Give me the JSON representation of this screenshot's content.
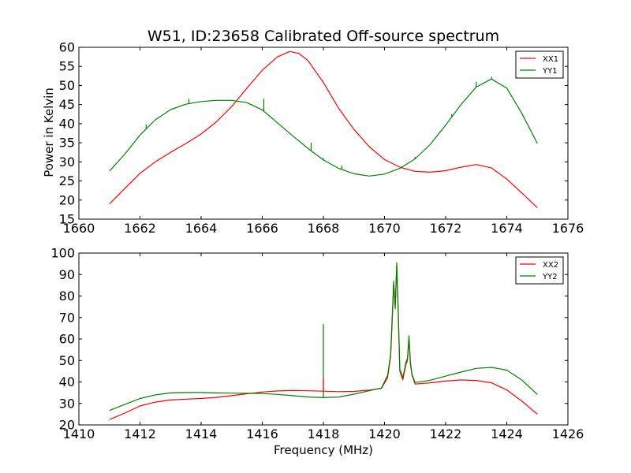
{
  "chart_data": [
    {
      "type": "line",
      "title": "W51, ID:23658 Calibrated Off-source spectrum",
      "xlabel": "",
      "ylabel": "Power in Kelvin",
      "xlim": [
        1660,
        1676
      ],
      "ylim": [
        15,
        60
      ],
      "xticks": [
        1660,
        1662,
        1664,
        1666,
        1668,
        1670,
        1672,
        1674,
        1676
      ],
      "yticks": [
        15,
        20,
        25,
        30,
        35,
        40,
        45,
        50,
        55,
        60
      ],
      "legend_position": "top-right",
      "series": [
        {
          "name": "XX1",
          "color": "#ff0000",
          "x": [
            1661.0,
            1661.5,
            1662.0,
            1662.5,
            1663.0,
            1663.5,
            1664.0,
            1664.5,
            1665.0,
            1665.5,
            1666.0,
            1666.5,
            1666.9,
            1667.2,
            1667.5,
            1668.0,
            1668.5,
            1669.0,
            1669.5,
            1670.0,
            1670.5,
            1671.0,
            1671.5,
            1672.0,
            1672.5,
            1673.0,
            1673.5,
            1674.0,
            1674.5,
            1675.0
          ],
          "y": [
            19.0,
            23.0,
            27.0,
            30.0,
            32.5,
            34.8,
            37.3,
            40.5,
            44.5,
            49.3,
            54.0,
            57.5,
            58.9,
            58.4,
            56.5,
            50.8,
            44.0,
            38.5,
            34.0,
            30.6,
            28.6,
            27.5,
            27.3,
            27.7,
            28.6,
            29.3,
            28.4,
            25.5,
            21.8,
            18.0
          ]
        },
        {
          "name": "YY1",
          "color": "#008000",
          "x": [
            1661.0,
            1661.5,
            1662.0,
            1662.5,
            1663.0,
            1663.5,
            1664.0,
            1664.5,
            1665.0,
            1665.5,
            1666.0,
            1666.5,
            1667.0,
            1667.5,
            1668.0,
            1668.5,
            1669.0,
            1669.5,
            1670.0,
            1670.5,
            1671.0,
            1671.5,
            1672.0,
            1672.5,
            1673.0,
            1673.5,
            1674.0,
            1674.5,
            1675.0
          ],
          "y": [
            27.6,
            32.0,
            37.0,
            41.0,
            43.7,
            45.1,
            45.8,
            46.1,
            46.1,
            45.5,
            43.6,
            40.2,
            36.8,
            33.5,
            30.5,
            28.3,
            26.9,
            26.3,
            26.8,
            28.3,
            30.8,
            34.6,
            39.6,
            45.0,
            49.6,
            51.7,
            49.3,
            42.6,
            34.8
          ]
        }
      ],
      "spikes": [
        {
          "series": "YY1",
          "x": 1663.6,
          "y_peak": 46.5
        },
        {
          "series": "YY1",
          "x": 1666.05,
          "y_peak": 46.5
        },
        {
          "series": "YY1",
          "x": 1662.2,
          "y_peak": 39.8
        },
        {
          "series": "YY1",
          "x": 1667.6,
          "y_peak": 35.0
        },
        {
          "series": "YY1",
          "x": 1668.0,
          "y_peak": 31.0
        },
        {
          "series": "YY1",
          "x": 1668.6,
          "y_peak": 29.0
        },
        {
          "series": "YY1",
          "x": 1671.0,
          "y_peak": 31.3
        },
        {
          "series": "YY1",
          "x": 1672.2,
          "y_peak": 42.5
        },
        {
          "series": "YY1",
          "x": 1673.0,
          "y_peak": 51.0
        },
        {
          "series": "YY1",
          "x": 1673.5,
          "y_peak": 52.3
        }
      ]
    },
    {
      "type": "line",
      "title": "",
      "xlabel": "Frequency (MHz)",
      "ylabel": "",
      "xlim": [
        1410,
        1426
      ],
      "ylim": [
        20,
        100
      ],
      "xticks": [
        1410,
        1412,
        1414,
        1416,
        1418,
        1420,
        1422,
        1424,
        1426
      ],
      "yticks": [
        20,
        30,
        40,
        50,
        60,
        70,
        80,
        90,
        100
      ],
      "legend_position": "top-right",
      "series": [
        {
          "name": "XX2",
          "color": "#ff0000",
          "x": [
            1411.0,
            1411.5,
            1412.0,
            1412.5,
            1413.0,
            1413.5,
            1414.0,
            1414.5,
            1415.0,
            1415.5,
            1416.0,
            1416.5,
            1417.0,
            1417.5,
            1418.0,
            1418.5,
            1419.0,
            1419.5,
            1419.9,
            1420.1,
            1420.2,
            1420.25,
            1420.3,
            1420.35,
            1420.4,
            1420.45,
            1420.5,
            1420.6,
            1420.7,
            1420.75,
            1420.8,
            1420.85,
            1420.9,
            1421.0,
            1421.5,
            1422.0,
            1422.5,
            1423.0,
            1423.5,
            1424.0,
            1424.5,
            1425.0
          ],
          "y": [
            22.5,
            25.5,
            28.8,
            30.6,
            31.6,
            32.0,
            32.3,
            32.8,
            33.6,
            34.5,
            35.3,
            35.8,
            36.0,
            35.9,
            35.7,
            35.5,
            35.6,
            36.2,
            37.0,
            42.0,
            52.0,
            68.0,
            85.0,
            76.0,
            94.0,
            72.0,
            45.0,
            41.0,
            48.0,
            50.0,
            60.0,
            48.0,
            43.0,
            39.0,
            39.6,
            40.4,
            40.9,
            40.7,
            39.6,
            36.3,
            31.0,
            25.0
          ]
        },
        {
          "name": "YY2",
          "color": "#008000",
          "x": [
            1411.0,
            1411.5,
            1412.0,
            1412.5,
            1413.0,
            1413.5,
            1414.0,
            1414.5,
            1415.0,
            1415.5,
            1416.0,
            1416.5,
            1417.0,
            1417.5,
            1418.0,
            1418.5,
            1419.0,
            1419.5,
            1419.9,
            1420.1,
            1420.2,
            1420.25,
            1420.3,
            1420.35,
            1420.4,
            1420.45,
            1420.5,
            1420.6,
            1420.7,
            1420.75,
            1420.8,
            1420.85,
            1420.9,
            1421.0,
            1421.5,
            1422.0,
            1422.5,
            1423.0,
            1423.5,
            1424.0,
            1424.5,
            1425.0
          ],
          "y": [
            26.7,
            29.5,
            32.3,
            34.0,
            34.9,
            35.1,
            35.1,
            34.9,
            34.8,
            34.7,
            34.6,
            34.2,
            33.6,
            33.0,
            32.7,
            33.0,
            34.3,
            35.9,
            37.2,
            43.0,
            53.0,
            70.0,
            87.0,
            74.0,
            95.5,
            73.0,
            46.0,
            42.0,
            49.0,
            51.0,
            61.5,
            49.0,
            43.5,
            39.7,
            40.8,
            42.7,
            44.6,
            46.3,
            46.8,
            45.5,
            40.8,
            34.2
          ]
        }
      ],
      "spikes": [
        {
          "series": "YY2",
          "x": 1418.0,
          "y_peak": 67.0
        },
        {
          "series": "XX2",
          "x": 1418.0,
          "y_peak": 42.0
        }
      ]
    }
  ]
}
